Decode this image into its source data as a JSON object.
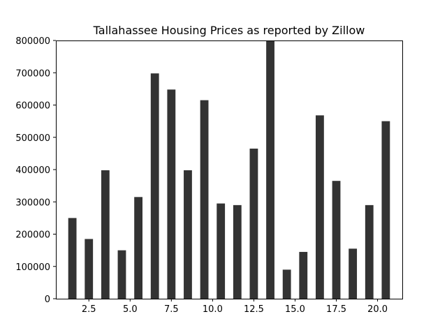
{
  "chart_data": {
    "type": "bar",
    "title": "Tallahassee Housing Prices as reported by Zillow",
    "xlabel": "",
    "ylabel": "",
    "x": [
      1.5,
      2.5,
      3.5,
      4.5,
      5.5,
      6.5,
      7.5,
      8.5,
      9.5,
      10.5,
      11.5,
      12.5,
      13.5,
      14.5,
      15.5,
      16.5,
      17.5,
      18.5,
      19.5,
      20.5
    ],
    "values": [
      250000,
      185000,
      398000,
      150000,
      315000,
      698000,
      648000,
      398000,
      615000,
      295000,
      290000,
      465000,
      800000,
      90000,
      145000,
      568000,
      365000,
      155000,
      290000,
      550000
    ],
    "bar_width": 0.5,
    "xlim": [
      0.5,
      21.5
    ],
    "ylim": [
      0,
      800000
    ],
    "xticks": [
      2.5,
      5.0,
      7.5,
      10.0,
      12.5,
      15.0,
      17.5,
      20.0
    ],
    "xtick_labels": [
      "2.5",
      "5.0",
      "7.5",
      "10.0",
      "12.5",
      "15.0",
      "17.5",
      "20.0"
    ],
    "yticks": [
      0,
      100000,
      200000,
      300000,
      400000,
      500000,
      600000,
      700000,
      800000
    ],
    "ytick_labels": [
      "0",
      "100000",
      "200000",
      "300000",
      "400000",
      "500000",
      "600000",
      "700000",
      "800000"
    ],
    "grid": false,
    "colors": {
      "bar": "#333333",
      "axis": "#000000",
      "background": "#ffffff"
    }
  }
}
